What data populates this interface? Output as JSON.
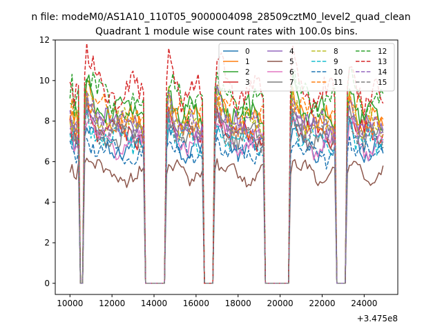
{
  "chart_data": {
    "type": "line",
    "suptitle": "n file: modeM0/AS1A10_110T05_9000004098_28509cztM0_level2_quad_clean",
    "title": "Quadrant 1 module wise count rates with 100.0s bins.",
    "xlabel": "",
    "ylabel": "",
    "x_offset_label": "+3.475e8",
    "xlim": [
      9300,
      25600
    ],
    "ylim": [
      -0.55,
      12.0
    ],
    "xticks": [
      10000,
      12000,
      14000,
      16000,
      18000,
      20000,
      22000,
      24000
    ],
    "xtick_labels": [
      "10000",
      "12000",
      "14000",
      "16000",
      "18000",
      "20000",
      "22000",
      "24000"
    ],
    "yticks": [
      0,
      2,
      4,
      6,
      8,
      10,
      12
    ],
    "ytick_labels": [
      "0",
      "2",
      "4",
      "6",
      "8",
      "10",
      "12"
    ],
    "grid": false,
    "legend_position": "top-right",
    "legend_columns": 4,
    "on_intervals": [
      [
        10000,
        10400
      ],
      [
        10700,
        13500
      ],
      [
        14600,
        16300
      ],
      [
        16900,
        19200
      ],
      [
        20500,
        22600
      ],
      [
        23200,
        24900
      ]
    ],
    "series": [
      {
        "name": "0",
        "color": "#1f77b4",
        "dash": "solid",
        "level": 6.6
      },
      {
        "name": "1",
        "color": "#ff7f0e",
        "dash": "solid",
        "level": 7.9
      },
      {
        "name": "2",
        "color": "#2ca02c",
        "dash": "solid",
        "level": 8.4
      },
      {
        "name": "3",
        "color": "#d62728",
        "dash": "solid",
        "level": 7.4
      },
      {
        "name": "4",
        "color": "#9467bd",
        "dash": "solid",
        "level": 7.6
      },
      {
        "name": "5",
        "color": "#8c564b",
        "dash": "solid",
        "level": 5.3
      },
      {
        "name": "6",
        "color": "#e377c2",
        "dash": "solid",
        "level": 6.8
      },
      {
        "name": "7",
        "color": "#7f7f7f",
        "dash": "solid",
        "level": 7.2
      },
      {
        "name": "8",
        "color": "#bcbd22",
        "dash": "dashed",
        "level": 7.8
      },
      {
        "name": "9",
        "color": "#17becf",
        "dash": "dashed",
        "level": 7.0
      },
      {
        "name": "10",
        "color": "#1f77b4",
        "dash": "dashed",
        "level": 6.4
      },
      {
        "name": "11",
        "color": "#ff7f0e",
        "dash": "dashed",
        "level": 8.1
      },
      {
        "name": "12",
        "color": "#2ca02c",
        "dash": "dashed",
        "level": 8.8
      },
      {
        "name": "13",
        "color": "#d62728",
        "dash": "dashed",
        "level": 9.3
      },
      {
        "name": "14",
        "color": "#9467bd",
        "dash": "dashed",
        "level": 7.7
      },
      {
        "name": "15",
        "color": "#7f7f7f",
        "dash": "dashed",
        "level": 7.3
      }
    ]
  }
}
